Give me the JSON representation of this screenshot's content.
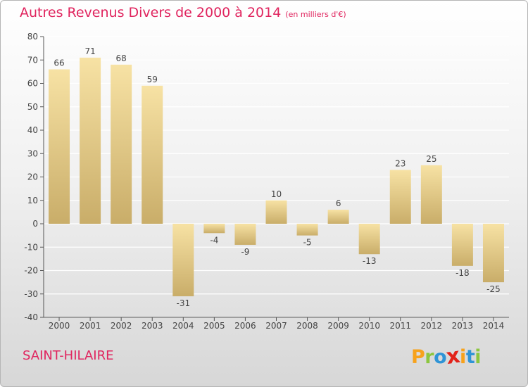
{
  "header": {
    "title": "Autres Revenus Divers de 2000 à 2014",
    "subtitle": "(en milliers d'€)"
  },
  "footer": {
    "location": "SAINT-HILAIRE",
    "logo_letters": [
      "P",
      "r",
      "o",
      "x",
      "i",
      "t",
      "i"
    ],
    "logo_colors": [
      "#f7a21b",
      "#8cc63f",
      "#2f94d6",
      "#e2231a",
      "#f7a21b",
      "#2f94d6",
      "#8cc63f"
    ]
  },
  "colors": {
    "title": "#e0245e",
    "bar_light": "#f7e2a4",
    "bar_dark": "#c9ad69",
    "grid": "#ffffff"
  },
  "chart_data": {
    "type": "bar",
    "categories": [
      "2000",
      "2001",
      "2002",
      "2003",
      "2004",
      "2005",
      "2006",
      "2007",
      "2008",
      "2009",
      "2010",
      "2011",
      "2012",
      "2013",
      "2014"
    ],
    "values": [
      66,
      71,
      68,
      59,
      -31,
      -4,
      -9,
      10,
      -5,
      6,
      -13,
      23,
      25,
      -18,
      -25
    ],
    "title": "Autres Revenus Divers de 2000 à 2014",
    "ylim": [
      -40,
      80
    ],
    "yticks": [
      -40,
      -30,
      -20,
      -10,
      0,
      10,
      20,
      30,
      40,
      50,
      60,
      70,
      80
    ],
    "grid": "horizontal"
  }
}
